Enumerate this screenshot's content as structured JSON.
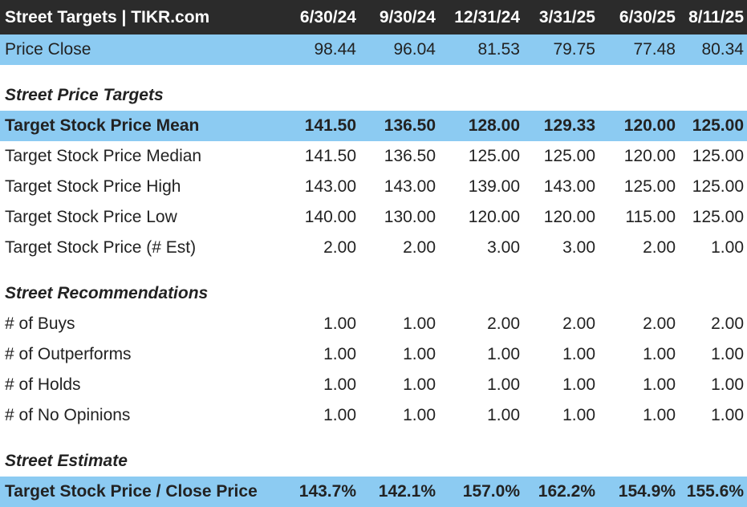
{
  "header": {
    "title": "Street Targets | TIKR.com",
    "dates": [
      "6/30/24",
      "9/30/24",
      "12/31/24",
      "3/31/25",
      "6/30/25",
      "8/11/25"
    ]
  },
  "price_close": {
    "label": "Price Close",
    "values": [
      "98.44",
      "96.04",
      "81.53",
      "79.75",
      "77.48",
      "80.34"
    ]
  },
  "section_targets": "Street Price Targets",
  "targets": [
    {
      "label": "Target Stock Price Mean",
      "values": [
        "141.50",
        "136.50",
        "128.00",
        "129.33",
        "120.00",
        "125.00"
      ]
    },
    {
      "label": "Target Stock Price Median",
      "values": [
        "141.50",
        "136.50",
        "125.00",
        "125.00",
        "120.00",
        "125.00"
      ]
    },
    {
      "label": "Target Stock Price High",
      "values": [
        "143.00",
        "143.00",
        "139.00",
        "143.00",
        "125.00",
        "125.00"
      ]
    },
    {
      "label": "Target Stock Price Low",
      "values": [
        "140.00",
        "130.00",
        "120.00",
        "120.00",
        "115.00",
        "125.00"
      ]
    },
    {
      "label": "Target Stock Price (# Est)",
      "values": [
        "2.00",
        "2.00",
        "3.00",
        "3.00",
        "2.00",
        "1.00"
      ]
    }
  ],
  "section_recs": "Street Recommendations",
  "recs": [
    {
      "label": "# of Buys",
      "values": [
        "1.00",
        "1.00",
        "2.00",
        "2.00",
        "2.00",
        "2.00"
      ]
    },
    {
      "label": "# of Outperforms",
      "values": [
        "1.00",
        "1.00",
        "1.00",
        "1.00",
        "1.00",
        "1.00"
      ]
    },
    {
      "label": "# of Holds",
      "values": [
        "1.00",
        "1.00",
        "1.00",
        "1.00",
        "1.00",
        "1.00"
      ]
    },
    {
      "label": "# of No Opinions",
      "values": [
        "1.00",
        "1.00",
        "1.00",
        "1.00",
        "1.00",
        "1.00"
      ]
    }
  ],
  "section_estimate": "Street Estimate",
  "estimate": {
    "label": "Target Stock Price / Close Price",
    "values": [
      "143.7%",
      "142.1%",
      "157.0%",
      "162.2%",
      "154.9%",
      "155.6%"
    ]
  },
  "colors": {
    "header_bg": "#2b2b2b",
    "highlight_bg": "#8ccbf2"
  }
}
